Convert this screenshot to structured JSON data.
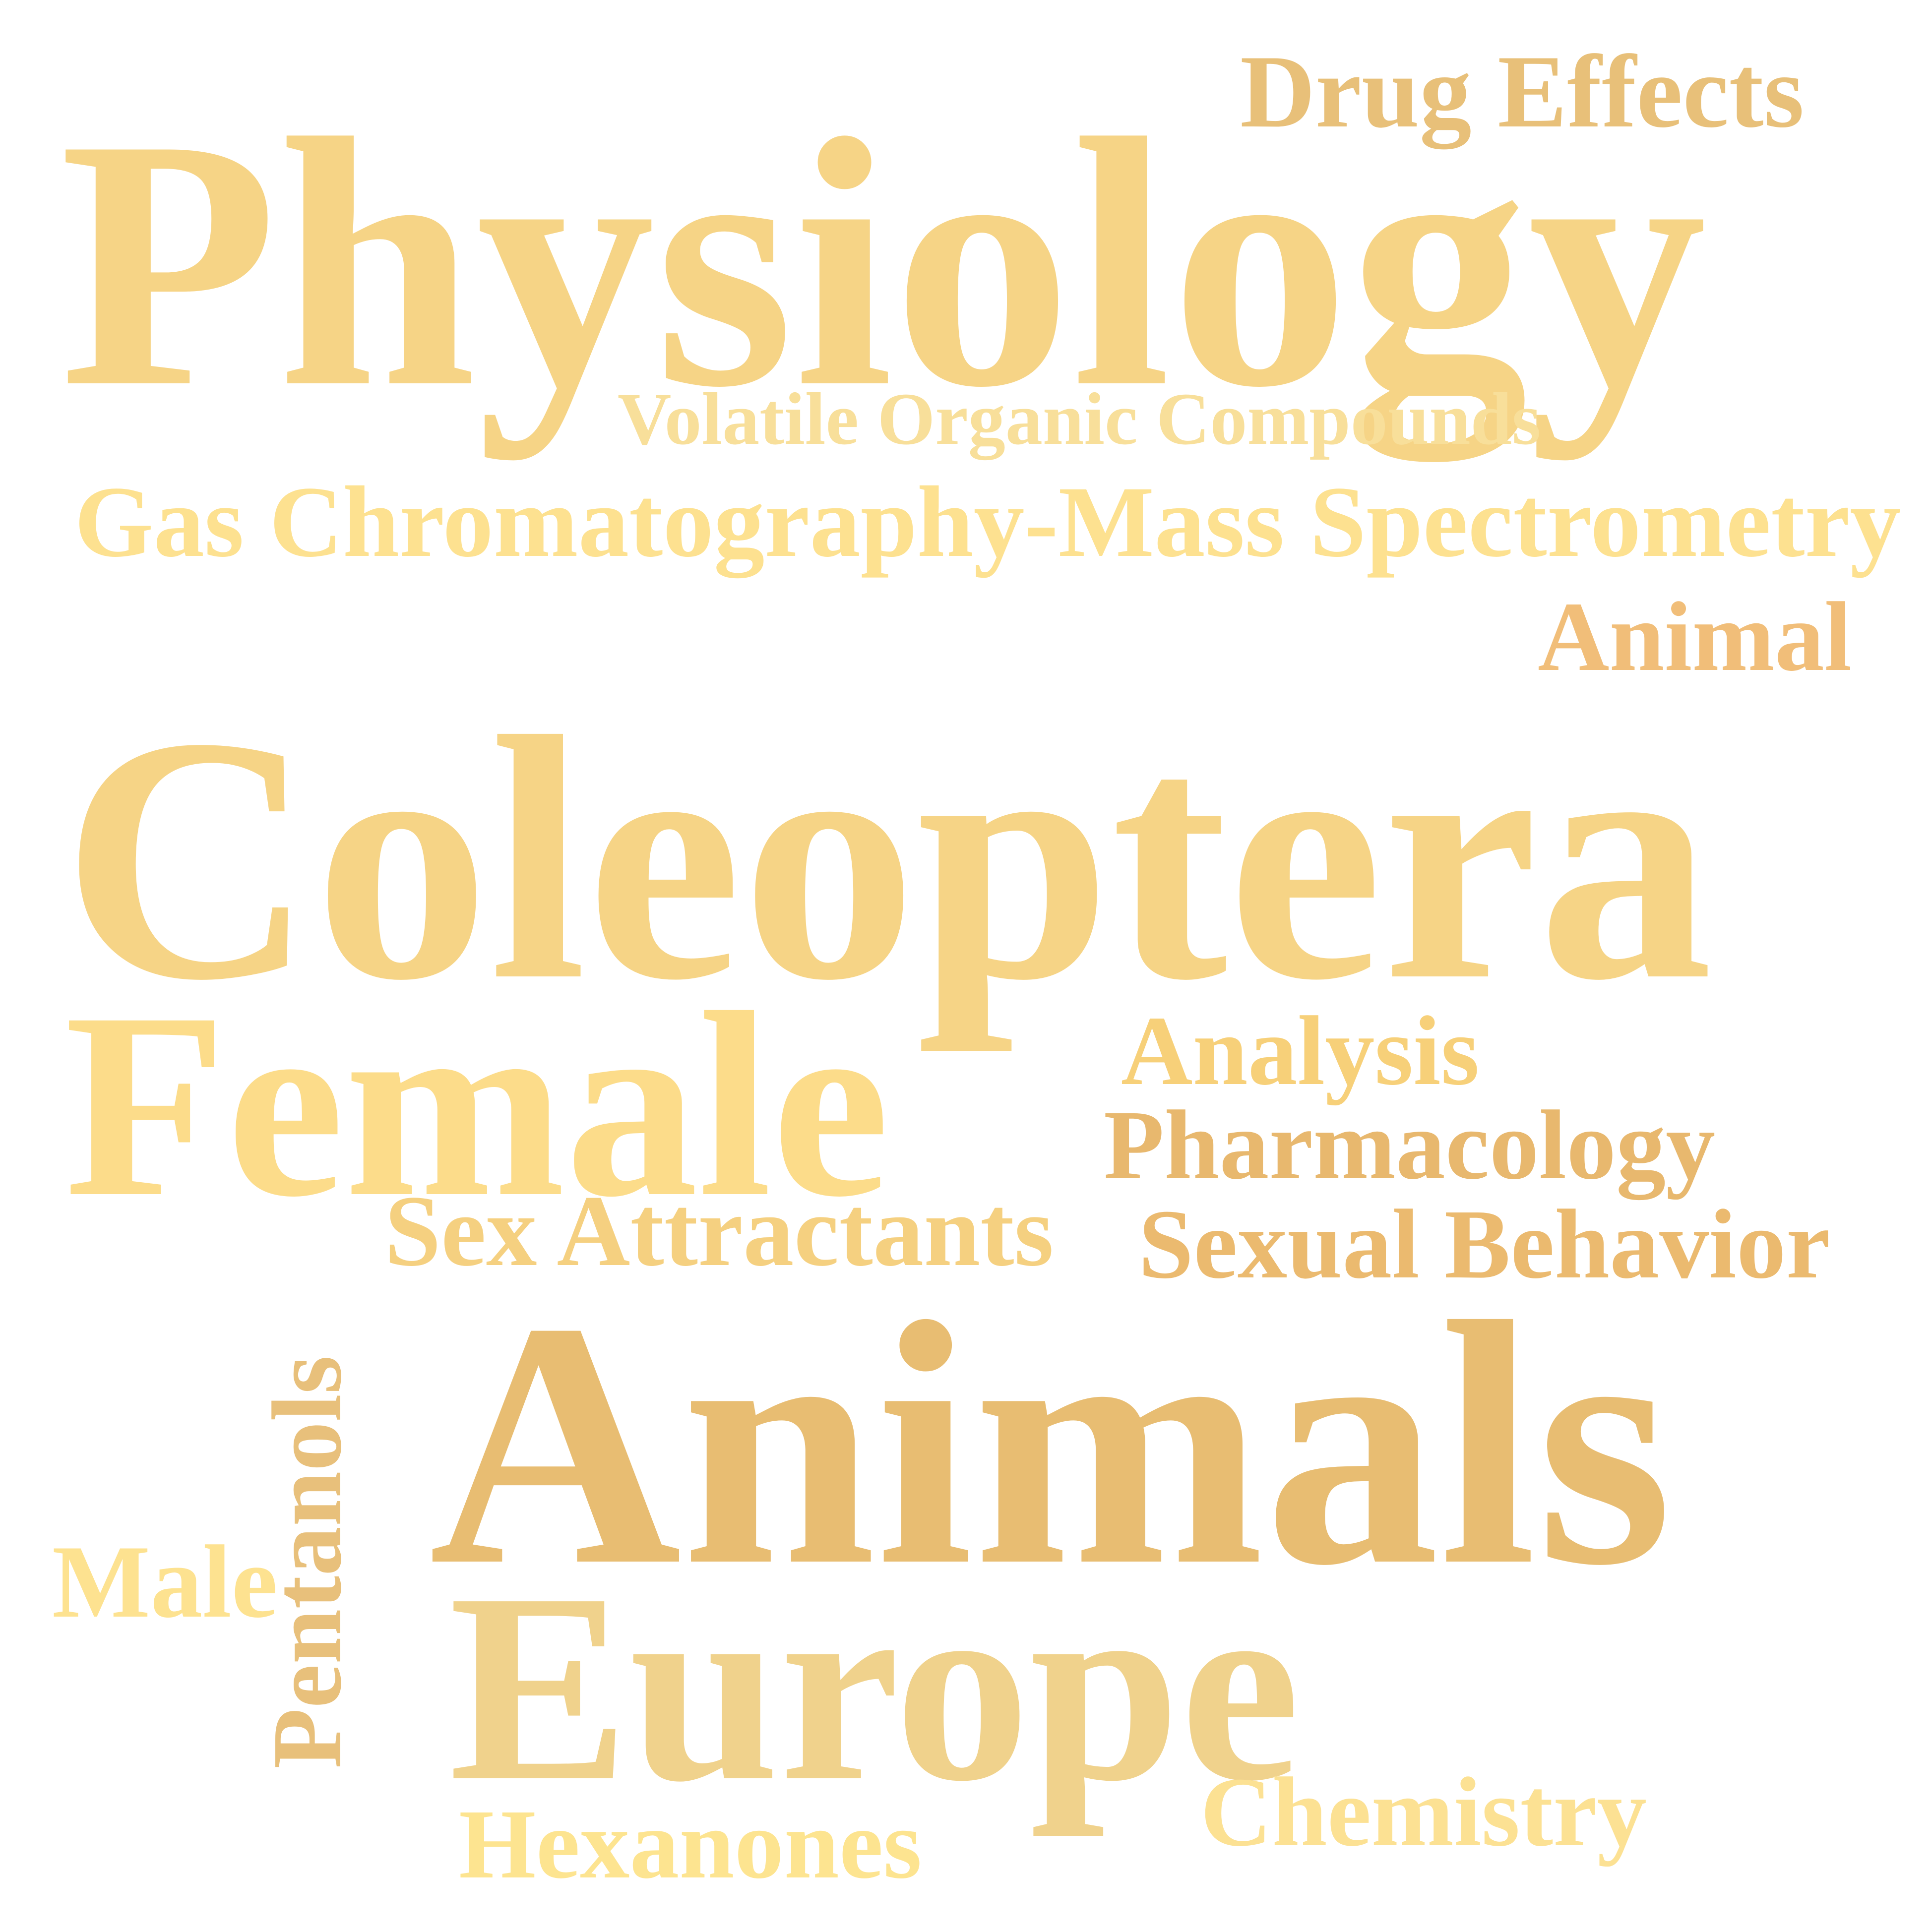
{
  "word_cloud": {
    "background": "#ffffff",
    "words": [
      {
        "key": "physiology",
        "text": "Physiology",
        "color": "#f6d486"
      },
      {
        "key": "coleoptera",
        "text": "Coleoptera",
        "color": "#f6d486"
      },
      {
        "key": "animals",
        "text": "Animals",
        "color": "#e8bd72"
      },
      {
        "key": "female",
        "text": "Female",
        "color": "#fcdc8a"
      },
      {
        "key": "europe",
        "text": "Europe",
        "color": "#f0d28c"
      },
      {
        "key": "drug_effects",
        "text": "Drug Effects",
        "color": "#e8c079"
      },
      {
        "key": "volatile_organic_compounds",
        "text": "Volatile Organic Compounds",
        "color": "#f8df9a"
      },
      {
        "key": "gc_ms",
        "text": "Gas Chromatography-Mass Spectrometry",
        "color": "#fde190"
      },
      {
        "key": "animal",
        "text": "Animal",
        "color": "#f1be79"
      },
      {
        "key": "analysis",
        "text": "Analysis",
        "color": "#f7d079"
      },
      {
        "key": "pharmacology",
        "text": "Pharmacology",
        "color": "#e8b86e"
      },
      {
        "key": "sex_attractants",
        "text": "Sex Attractants",
        "color": "#f5d080"
      },
      {
        "key": "sexual_behavior",
        "text": "Sexual Behavior",
        "color": "#ebba6f"
      },
      {
        "key": "male",
        "text": "Male",
        "color": "#fde290"
      },
      {
        "key": "pentanols",
        "text": "Pentanols",
        "color": "#e8c07b"
      },
      {
        "key": "hexanones",
        "text": "Hexanones",
        "color": "#fde490"
      },
      {
        "key": "chemistry",
        "text": "Chemistry",
        "color": "#fce193"
      }
    ]
  }
}
